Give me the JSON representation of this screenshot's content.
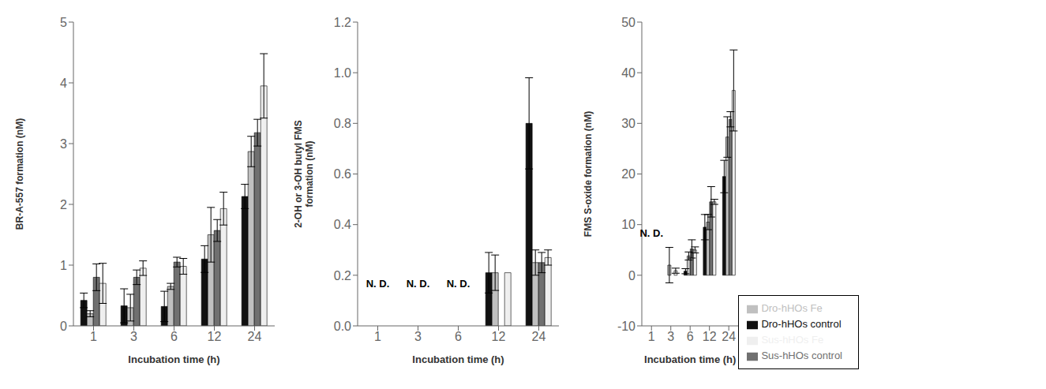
{
  "chart_data": [
    {
      "type": "bar",
      "xlabel": "Incubation time (h)",
      "ylabel": "BR-A-557 formation (nM)",
      "categories": [
        "1",
        "3",
        "6",
        "12",
        "24"
      ],
      "ylim": [
        0,
        5
      ],
      "yticks": [
        0,
        1,
        2,
        3,
        4,
        5
      ],
      "grid": false,
      "annotations": [],
      "series": [
        {
          "name": "Dro-hHOs control",
          "color": "#111111",
          "values": [
            0.42,
            0.33,
            0.32,
            1.1,
            2.13
          ],
          "errors": [
            0.12,
            0.28,
            0.25,
            0.22,
            0.2
          ]
        },
        {
          "name": "Dro-hHOs Fe",
          "color": "#c0c0c0",
          "values": [
            0.2,
            0.3,
            0.65,
            1.5,
            2.87
          ],
          "errors": [
            0.05,
            0.22,
            0.05,
            0.45,
            0.25
          ]
        },
        {
          "name": "Sus-hHOs control",
          "color": "#707070",
          "values": [
            0.8,
            0.8,
            1.05,
            1.57,
            3.18
          ],
          "errors": [
            0.22,
            0.12,
            0.08,
            0.18,
            0.22
          ]
        },
        {
          "name": "Sus-hHOs Fe",
          "color": "#efefef",
          "values": [
            0.7,
            0.95,
            0.98,
            1.93,
            3.95
          ],
          "errors": [
            0.33,
            0.12,
            0.13,
            0.27,
            0.53
          ]
        }
      ]
    },
    {
      "type": "bar",
      "xlabel": "Incubation time (h)",
      "ylabel": "2-OH or 3-OH butyl FMS\nformation (nM)",
      "categories": [
        "1",
        "3",
        "6",
        "12",
        "24"
      ],
      "ylim": [
        0,
        1.2
      ],
      "yticks": [
        {
          "value": 0,
          "label": "0.0"
        },
        0.2,
        0.4,
        0.6,
        0.8,
        {
          "value": 1.0,
          "label": "1.0"
        },
        1.2
      ],
      "grid": false,
      "annotations": [
        {
          "text": "N. D.",
          "x": "1"
        },
        {
          "text": "N. D.",
          "x": "3"
        },
        {
          "text": "N. D.",
          "x": "6"
        }
      ],
      "series": [
        {
          "name": "Dro-hHOs control",
          "color": "#111111",
          "values": [
            null,
            null,
            null,
            0.21,
            0.8
          ],
          "errors": [
            null,
            null,
            null,
            0.08,
            0.18
          ]
        },
        {
          "name": "Dro-hHOs Fe",
          "color": "#c0c0c0",
          "values": [
            null,
            null,
            null,
            0.21,
            0.25
          ],
          "errors": [
            null,
            null,
            null,
            0.07,
            0.05
          ]
        },
        {
          "name": "Sus-hHOs control",
          "color": "#707070",
          "values": [
            null,
            null,
            null,
            0.0,
            0.25
          ],
          "errors": [
            null,
            null,
            null,
            0.0,
            0.04
          ]
        },
        {
          "name": "Sus-hHOs Fe",
          "color": "#efefef",
          "values": [
            null,
            null,
            null,
            0.21,
            0.27
          ],
          "errors": [
            null,
            null,
            null,
            0.0,
            0.03
          ]
        }
      ]
    },
    {
      "type": "bar",
      "xlabel": "Incubation time (h)",
      "ylabel": "FMS S-oxide formation (nM)",
      "categories": [
        "1",
        "3",
        "6",
        "12",
        "24"
      ],
      "ylim": [
        -10,
        50
      ],
      "yticks": [
        -10,
        0,
        10,
        20,
        30,
        40,
        50
      ],
      "grid": false,
      "legend": "lower right",
      "annotations": [
        {
          "text": "N. D.",
          "x": "1"
        }
      ],
      "series": [
        {
          "name": "Dro-hHOs control",
          "color": "#111111",
          "values": [
            null,
            0.0,
            0.8,
            9.5,
            19.5
          ],
          "errors": [
            null,
            0.0,
            0.5,
            2.5,
            3.2
          ]
        },
        {
          "name": "Dro-hHOs Fe",
          "color": "#c0c0c0",
          "values": [
            null,
            2.0,
            3.8,
            10.5,
            27.3
          ],
          "errors": [
            null,
            3.5,
            0.8,
            1.5,
            4.0
          ]
        },
        {
          "name": "Sus-hHOs control",
          "color": "#707070",
          "values": [
            null,
            0.0,
            5.2,
            14.5,
            30.8
          ],
          "errors": [
            null,
            0.0,
            1.8,
            3.0,
            1.5
          ]
        },
        {
          "name": "Sus-hHOs Fe",
          "color": "#efefef",
          "values": [
            null,
            0.9,
            5.0,
            14.5,
            36.5
          ],
          "errors": [
            null,
            0.5,
            0.6,
            0.5,
            8.0
          ]
        }
      ]
    }
  ]
}
